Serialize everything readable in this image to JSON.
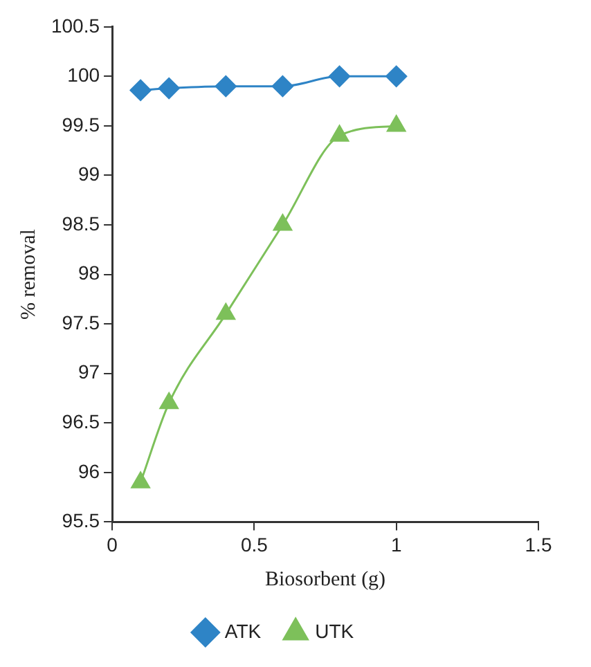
{
  "chart_data": {
    "type": "line",
    "xlabel": "Biosorbent (g)",
    "ylabel": "% removal",
    "x": [
      0.1,
      0.2,
      0.4,
      0.6,
      0.8,
      1
    ],
    "series": [
      {
        "name": "ATK",
        "color": "#2e84c6",
        "marker": "diamond",
        "values": [
          99.86,
          99.88,
          99.9,
          99.9,
          100,
          100
        ]
      },
      {
        "name": "UTK",
        "color": "#7dc05a",
        "marker": "triangle",
        "values": [
          95.9,
          96.7,
          97.6,
          98.5,
          99.4,
          99.5
        ]
      }
    ],
    "xlim": [
      0,
      1.5
    ],
    "xticks": [
      0,
      0.5,
      1,
      1.5
    ],
    "ylim": [
      95.5,
      100.5
    ],
    "yticks": [
      95.5,
      96,
      96.5,
      97,
      97.5,
      98,
      98.5,
      99,
      99.5,
      100,
      100.5
    ],
    "grid": false,
    "legend": "bottom"
  }
}
